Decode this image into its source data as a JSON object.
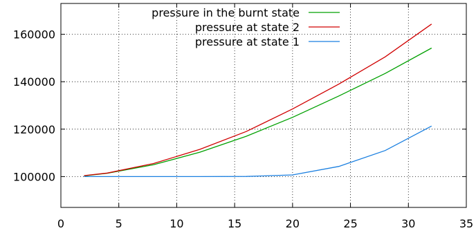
{
  "chart_data": {
    "type": "line",
    "title": "",
    "xlabel": "",
    "ylabel": "",
    "xlim": [
      0,
      35
    ],
    "ylim": [
      87000,
      173000
    ],
    "grid": true,
    "legend_position": "top-right",
    "x_ticks": [
      0,
      5,
      10,
      15,
      20,
      25,
      30,
      35
    ],
    "x_tick_labels": [
      "0",
      "5",
      "10",
      "15",
      "20",
      "25",
      "30",
      "35"
    ],
    "y_ticks": [
      100000,
      120000,
      140000,
      160000
    ],
    "y_tick_labels": [
      "100000",
      "120000",
      "140000",
      "160000"
    ],
    "series": [
      {
        "name": "pressure in the burnt state",
        "color": "#00a000",
        "x": [
          2,
          4,
          8,
          12,
          16,
          20,
          24,
          28,
          32
        ],
        "y": [
          100300,
          101400,
          105000,
          110300,
          117000,
          125000,
          134000,
          143500,
          154200
        ]
      },
      {
        "name": "pressure at state 2",
        "color": "#d00000",
        "x": [
          2,
          4,
          8,
          12,
          16,
          20,
          24,
          28,
          32
        ],
        "y": [
          100400,
          101500,
          105500,
          111500,
          119000,
          128500,
          139000,
          150500,
          164300
        ]
      },
      {
        "name": "pressure at state 1",
        "color": "#1a7fe0",
        "x": [
          2,
          4,
          8,
          12,
          16,
          20,
          24,
          28,
          32
        ],
        "y": [
          100000,
          100000,
          100000,
          100000,
          100050,
          100700,
          104300,
          111000,
          121300
        ]
      }
    ]
  }
}
